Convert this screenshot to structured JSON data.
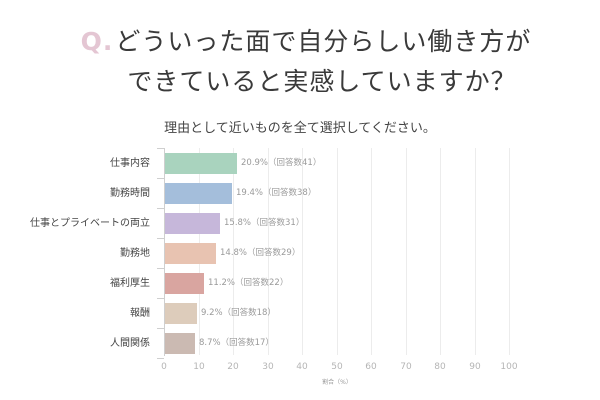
{
  "header": {
    "q_mark": "Q.",
    "title_line1": "どういった面で自分らしい働き方が",
    "title_line2": "できていると実感していますか？",
    "subtitle": "理由として近いものを全て選択してください。"
  },
  "chart_data": {
    "type": "bar",
    "orientation": "horizontal",
    "title": "どういった面で自分らしい働き方ができていると実感していますか？",
    "subtitle": "理由として近いものを全て選択してください。",
    "categories": [
      "仕事内容",
      "勤務時間",
      "仕事とプライベートの両立",
      "勤務地",
      "福利厚生",
      "報酬",
      "人間関係"
    ],
    "values": [
      20.9,
      19.4,
      15.8,
      14.8,
      11.2,
      9.2,
      8.7
    ],
    "counts": [
      41,
      38,
      31,
      29,
      22,
      18,
      17
    ],
    "value_labels": [
      "20.9%（回答数41）",
      "19.4%（回答数38）",
      "15.8%（回答数31）",
      "14.8%（回答数29）",
      "11.2%（回答数22）",
      "9.2%（回答数18）",
      "8.7%（回答数17）"
    ],
    "colors": [
      "#a9d3be",
      "#a4bedb",
      "#c6b7da",
      "#e8c3b1",
      "#d9a5a0",
      "#ddccbb",
      "#cbbab2"
    ],
    "xlabel": "割合（%）",
    "ylabel": "",
    "xlim": [
      0,
      100
    ],
    "xticks": [
      "0",
      "10",
      "20",
      "30",
      "40",
      "50",
      "60",
      "70",
      "80",
      "90",
      "100"
    ],
    "grid": true,
    "legend": null
  }
}
